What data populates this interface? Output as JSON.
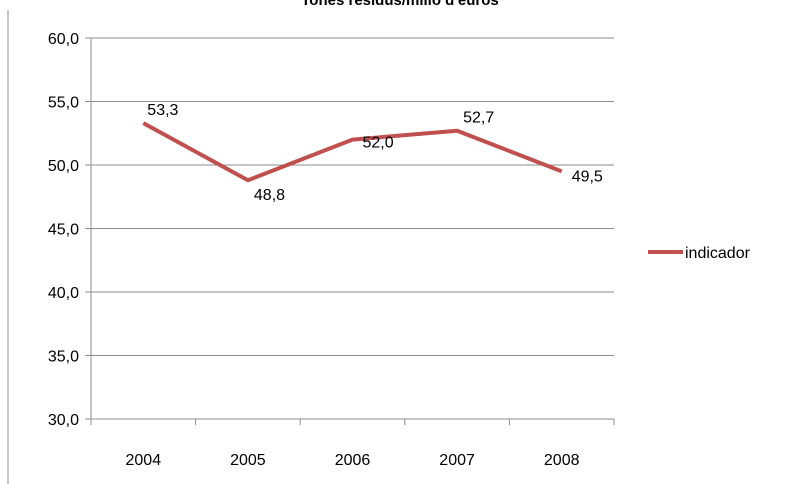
{
  "chart_data": {
    "type": "line",
    "title": "Tones residus/milió d'euros",
    "xlabel": "",
    "ylabel": "",
    "categories": [
      "2004",
      "2005",
      "2006",
      "2007",
      "2008"
    ],
    "y_ticks": [
      "60,0",
      "55,0",
      "50,0",
      "45,0",
      "40,0",
      "35,0",
      "30,0"
    ],
    "y_tick_values": [
      60,
      55,
      50,
      45,
      40,
      35,
      30
    ],
    "ylim": [
      30,
      60
    ],
    "grid": true,
    "legend_position": "right",
    "series": [
      {
        "name": "indicador",
        "color": "#c0504d",
        "values": [
          53.3,
          48.8,
          52.0,
          52.7,
          49.5
        ],
        "labels": [
          "53,3",
          "48,8",
          "52,0",
          "52,7",
          "49,5"
        ]
      }
    ]
  }
}
